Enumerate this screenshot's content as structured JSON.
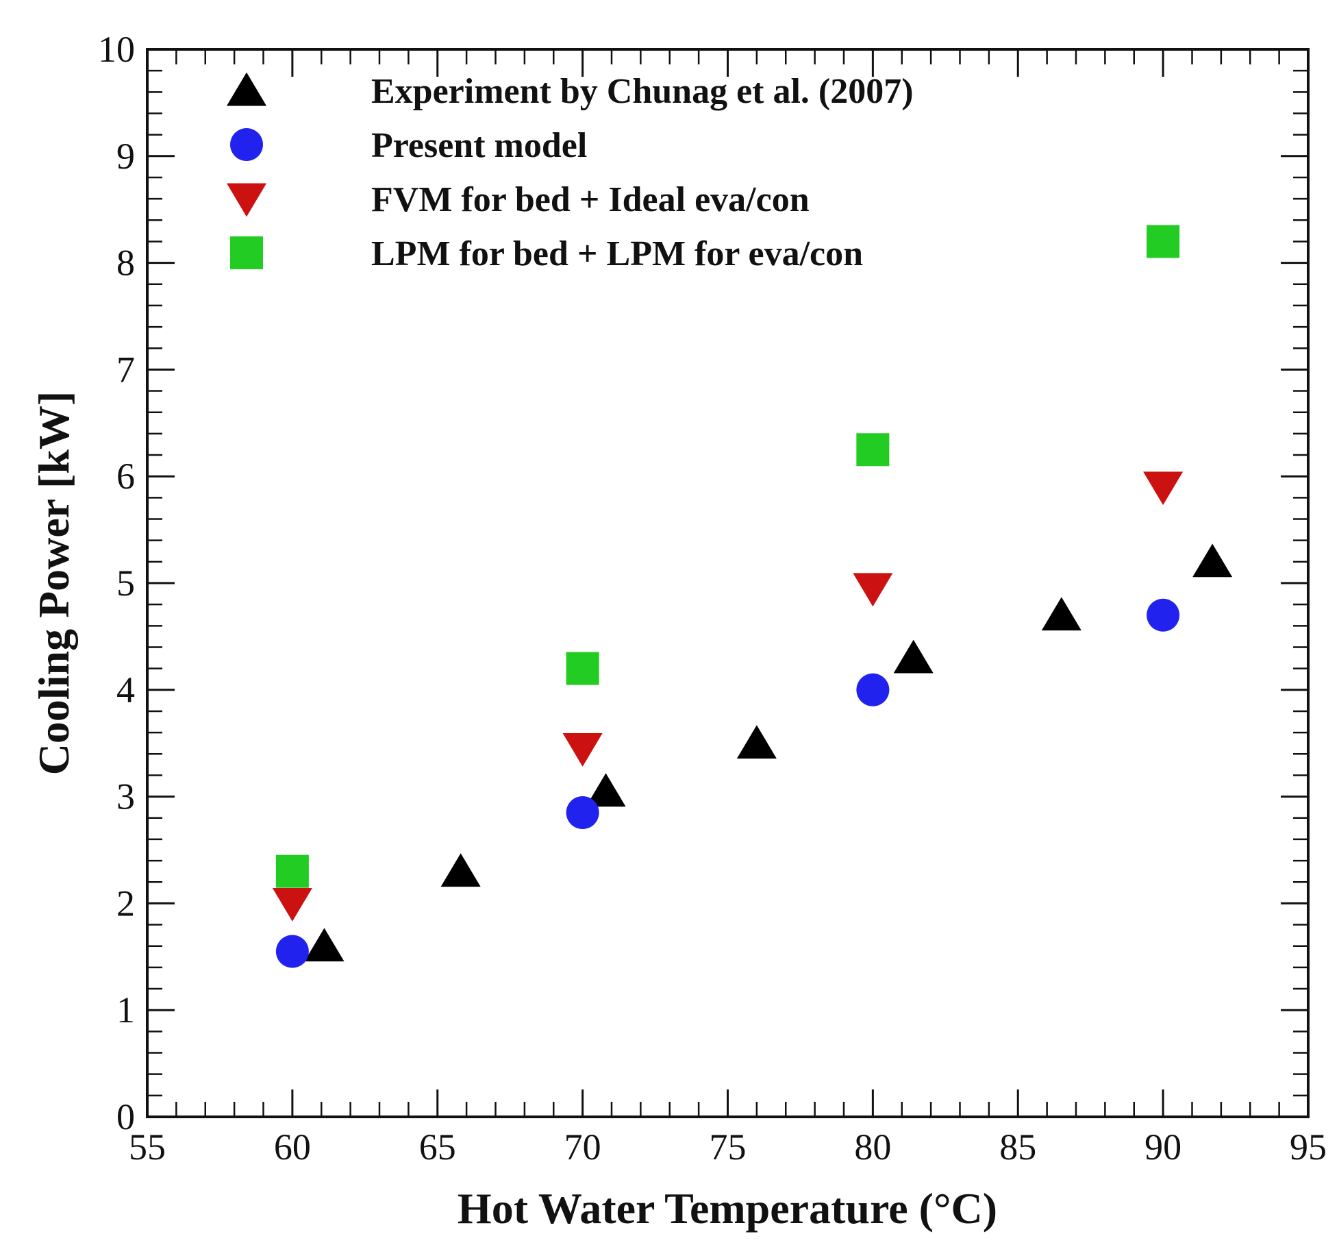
{
  "chart_data": {
    "type": "scatter",
    "title": "",
    "xlabel": "Hot Water Temperature (°C)",
    "ylabel": "Cooling Power [kW]",
    "xlim": [
      55,
      95
    ],
    "ylim": [
      0,
      10
    ],
    "xticks": [
      55,
      60,
      65,
      70,
      75,
      80,
      85,
      90,
      95
    ],
    "yticks": [
      0,
      1,
      2,
      3,
      4,
      5,
      6,
      7,
      8,
      9,
      10
    ],
    "x_minor_step": 1,
    "y_minor_step": 0.2,
    "grid": false,
    "legend_position": "top-left",
    "series": [
      {
        "name": "Experiment by Chunag et al. (2007)",
        "marker": "triangle-up",
        "color": "#000000",
        "x": [
          61.1,
          65.8,
          70.8,
          76.0,
          81.4,
          86.5,
          91.7
        ],
        "y": [
          1.6,
          2.3,
          3.05,
          3.5,
          4.3,
          4.7,
          5.2
        ]
      },
      {
        "name": "Present model",
        "marker": "circle",
        "color": "#2222ee",
        "x": [
          60,
          70,
          80,
          90
        ],
        "y": [
          1.55,
          2.85,
          4.0,
          4.7
        ]
      },
      {
        "name": "FVM for bed + Ideal eva/con",
        "marker": "triangle-down",
        "color": "#cc1111",
        "x": [
          60,
          70,
          80,
          90
        ],
        "y": [
          2.0,
          3.45,
          4.95,
          5.9
        ]
      },
      {
        "name": "LPM for bed + LPM for eva/con",
        "marker": "square",
        "color": "#22cc22",
        "x": [
          60,
          70,
          80,
          90
        ],
        "y": [
          2.3,
          4.2,
          6.25,
          8.2
        ]
      }
    ]
  }
}
